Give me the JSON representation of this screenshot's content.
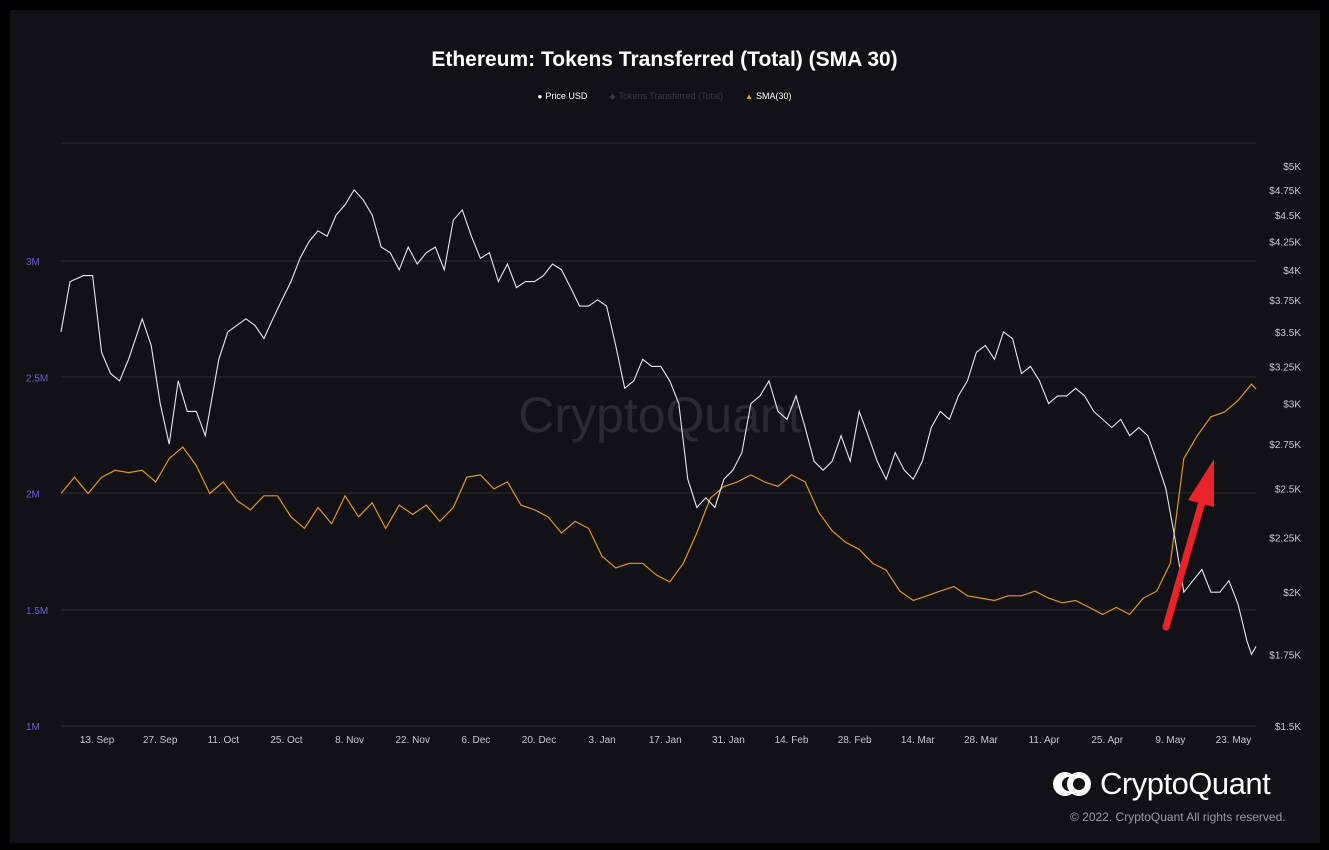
{
  "title": "Ethereum: Tokens Transferred (Total) (SMA 30)",
  "watermark": "CryptoQuant",
  "brand": {
    "logo_text": "CryptoQuant",
    "copyright": "© 2022. CryptoQuant All rights reserved."
  },
  "legend": [
    {
      "label": "Price USD",
      "marker": "circle",
      "color": "#ffffff"
    },
    {
      "label": "Tokens Transferred (Total)",
      "marker": "diamond",
      "color": "#3a3a40"
    },
    {
      "label": "SMA(30)",
      "marker": "triangle",
      "color": "#f0a21a"
    }
  ],
  "colors": {
    "background": "#121216",
    "price": "#e8e8ec",
    "sma": "#e0971a",
    "left_axis": "#6a5fd8",
    "right_axis": "#c8c8cc",
    "arrow": "#e8232a",
    "grid": "#2c2c32"
  },
  "chart_data": {
    "type": "line",
    "title": "Ethereum: Tokens Transferred (Total) (SMA 30)",
    "x_tick_labels": [
      "13. Sep",
      "27. Sep",
      "11. Oct",
      "25. Oct",
      "8. Nov",
      "22. Nov",
      "6. Dec",
      "20. Dec",
      "3. Jan",
      "17. Jan",
      "31. Jan",
      "14. Feb",
      "28. Feb",
      "14. Mar",
      "28. Mar",
      "11. Apr",
      "25. Apr",
      "9. May",
      "23. May"
    ],
    "x_range": [
      "2021-09-05",
      "2022-05-28"
    ],
    "left_axis": {
      "ticks": [
        "1M",
        "1.5M",
        "2M",
        "2.5M",
        "3M"
      ],
      "range": [
        1000000,
        3500000
      ]
    },
    "right_axis": {
      "scale": "log",
      "ticks": [
        "$1.5K",
        "$1.75K",
        "$2K",
        "$2.25K",
        "$2.5K",
        "$2.75K",
        "$3K",
        "$3.25K",
        "$3.5K",
        "$3.75K",
        "$4K",
        "$4.25K",
        "$4.5K",
        "$4.75K",
        "$5K"
      ],
      "range": [
        1500,
        5000
      ]
    },
    "grid": true,
    "legend_position": "top-center",
    "series": [
      {
        "name": "Price USD",
        "axis": "right",
        "points": [
          [
            "2021-09-05",
            3500
          ],
          [
            "2021-09-07",
            3900
          ],
          [
            "2021-09-10",
            3950
          ],
          [
            "2021-09-12",
            3950
          ],
          [
            "2021-09-14",
            3350
          ],
          [
            "2021-09-16",
            3200
          ],
          [
            "2021-09-18",
            3150
          ],
          [
            "2021-09-20",
            3300
          ],
          [
            "2021-09-23",
            3600
          ],
          [
            "2021-09-25",
            3400
          ],
          [
            "2021-09-27",
            3000
          ],
          [
            "2021-09-29",
            2750
          ],
          [
            "2021-10-01",
            3150
          ],
          [
            "2021-10-03",
            2950
          ],
          [
            "2021-10-05",
            2950
          ],
          [
            "2021-10-07",
            2800
          ],
          [
            "2021-10-10",
            3300
          ],
          [
            "2021-10-12",
            3500
          ],
          [
            "2021-10-14",
            3550
          ],
          [
            "2021-10-16",
            3600
          ],
          [
            "2021-10-18",
            3550
          ],
          [
            "2021-10-20",
            3450
          ],
          [
            "2021-10-22",
            3600
          ],
          [
            "2021-10-24",
            3750
          ],
          [
            "2021-10-26",
            3900
          ],
          [
            "2021-10-28",
            4100
          ],
          [
            "2021-10-30",
            4250
          ],
          [
            "2021-11-01",
            4350
          ],
          [
            "2021-11-03",
            4300
          ],
          [
            "2021-11-05",
            4500
          ],
          [
            "2021-11-07",
            4600
          ],
          [
            "2021-11-09",
            4750
          ],
          [
            "2021-11-11",
            4650
          ],
          [
            "2021-11-13",
            4500
          ],
          [
            "2021-11-15",
            4200
          ],
          [
            "2021-11-17",
            4150
          ],
          [
            "2021-11-19",
            4000
          ],
          [
            "2021-11-21",
            4200
          ],
          [
            "2021-11-23",
            4050
          ],
          [
            "2021-11-25",
            4150
          ],
          [
            "2021-11-27",
            4200
          ],
          [
            "2021-11-29",
            4000
          ],
          [
            "2021-12-01",
            4450
          ],
          [
            "2021-12-03",
            4550
          ],
          [
            "2021-12-05",
            4300
          ],
          [
            "2021-12-07",
            4100
          ],
          [
            "2021-12-09",
            4150
          ],
          [
            "2021-12-11",
            3900
          ],
          [
            "2021-12-13",
            4050
          ],
          [
            "2021-12-15",
            3850
          ],
          [
            "2021-12-17",
            3900
          ],
          [
            "2021-12-19",
            3900
          ],
          [
            "2021-12-21",
            3950
          ],
          [
            "2021-12-23",
            4050
          ],
          [
            "2021-12-25",
            4000
          ],
          [
            "2021-12-27",
            3850
          ],
          [
            "2021-12-29",
            3700
          ],
          [
            "2021-12-31",
            3700
          ],
          [
            "2022-01-02",
            3750
          ],
          [
            "2022-01-04",
            3700
          ],
          [
            "2022-01-06",
            3400
          ],
          [
            "2022-01-08",
            3100
          ],
          [
            "2022-01-10",
            3150
          ],
          [
            "2022-01-12",
            3300
          ],
          [
            "2022-01-14",
            3250
          ],
          [
            "2022-01-16",
            3250
          ],
          [
            "2022-01-18",
            3150
          ],
          [
            "2022-01-20",
            3000
          ],
          [
            "2022-01-22",
            2550
          ],
          [
            "2022-01-24",
            2400
          ],
          [
            "2022-01-26",
            2450
          ],
          [
            "2022-01-28",
            2400
          ],
          [
            "2022-01-30",
            2550
          ],
          [
            "2022-02-01",
            2600
          ],
          [
            "2022-02-03",
            2700
          ],
          [
            "2022-02-05",
            3000
          ],
          [
            "2022-02-07",
            3050
          ],
          [
            "2022-02-09",
            3150
          ],
          [
            "2022-02-11",
            2950
          ],
          [
            "2022-02-13",
            2900
          ],
          [
            "2022-02-15",
            3050
          ],
          [
            "2022-02-17",
            2850
          ],
          [
            "2022-02-19",
            2650
          ],
          [
            "2022-02-21",
            2600
          ],
          [
            "2022-02-23",
            2650
          ],
          [
            "2022-02-25",
            2800
          ],
          [
            "2022-02-27",
            2650
          ],
          [
            "2022-03-01",
            2950
          ],
          [
            "2022-03-03",
            2800
          ],
          [
            "2022-03-05",
            2650
          ],
          [
            "2022-03-07",
            2550
          ],
          [
            "2022-03-09",
            2700
          ],
          [
            "2022-03-11",
            2600
          ],
          [
            "2022-03-13",
            2550
          ],
          [
            "2022-03-15",
            2650
          ],
          [
            "2022-03-17",
            2850
          ],
          [
            "2022-03-19",
            2950
          ],
          [
            "2022-03-21",
            2900
          ],
          [
            "2022-03-23",
            3050
          ],
          [
            "2022-03-25",
            3150
          ],
          [
            "2022-03-27",
            3350
          ],
          [
            "2022-03-29",
            3400
          ],
          [
            "2022-03-31",
            3300
          ],
          [
            "2022-04-02",
            3500
          ],
          [
            "2022-04-04",
            3450
          ],
          [
            "2022-04-06",
            3200
          ],
          [
            "2022-04-08",
            3250
          ],
          [
            "2022-04-10",
            3150
          ],
          [
            "2022-04-12",
            3000
          ],
          [
            "2022-04-14",
            3050
          ],
          [
            "2022-04-16",
            3050
          ],
          [
            "2022-04-18",
            3100
          ],
          [
            "2022-04-20",
            3050
          ],
          [
            "2022-04-22",
            2950
          ],
          [
            "2022-04-24",
            2900
          ],
          [
            "2022-04-26",
            2850
          ],
          [
            "2022-04-28",
            2900
          ],
          [
            "2022-04-30",
            2800
          ],
          [
            "2022-05-02",
            2850
          ],
          [
            "2022-05-04",
            2800
          ],
          [
            "2022-05-06",
            2650
          ],
          [
            "2022-05-08",
            2500
          ],
          [
            "2022-05-10",
            2250
          ],
          [
            "2022-05-12",
            2000
          ],
          [
            "2022-05-14",
            2050
          ],
          [
            "2022-05-16",
            2100
          ],
          [
            "2022-05-18",
            2000
          ],
          [
            "2022-05-20",
            2000
          ],
          [
            "2022-05-22",
            2050
          ],
          [
            "2022-05-24",
            1950
          ],
          [
            "2022-05-26",
            1800
          ],
          [
            "2022-05-27",
            1750
          ],
          [
            "2022-05-28",
            1780
          ]
        ]
      },
      {
        "name": "SMA(30)",
        "axis": "left",
        "points": [
          [
            "2021-09-05",
            2000000
          ],
          [
            "2021-09-08",
            2070000
          ],
          [
            "2021-09-11",
            2000000
          ],
          [
            "2021-09-14",
            2070000
          ],
          [
            "2021-09-17",
            2100000
          ],
          [
            "2021-09-20",
            2090000
          ],
          [
            "2021-09-23",
            2100000
          ],
          [
            "2021-09-26",
            2050000
          ],
          [
            "2021-09-29",
            2150000
          ],
          [
            "2021-10-02",
            2200000
          ],
          [
            "2021-10-05",
            2120000
          ],
          [
            "2021-10-08",
            2000000
          ],
          [
            "2021-10-11",
            2050000
          ],
          [
            "2021-10-14",
            1970000
          ],
          [
            "2021-10-17",
            1930000
          ],
          [
            "2021-10-20",
            1990000
          ],
          [
            "2021-10-23",
            1990000
          ],
          [
            "2021-10-26",
            1900000
          ],
          [
            "2021-10-29",
            1850000
          ],
          [
            "2021-11-01",
            1940000
          ],
          [
            "2021-11-04",
            1870000
          ],
          [
            "2021-11-07",
            1990000
          ],
          [
            "2021-11-10",
            1900000
          ],
          [
            "2021-11-13",
            1960000
          ],
          [
            "2021-11-16",
            1850000
          ],
          [
            "2021-11-19",
            1950000
          ],
          [
            "2021-11-22",
            1910000
          ],
          [
            "2021-11-25",
            1950000
          ],
          [
            "2021-11-28",
            1880000
          ],
          [
            "2021-12-01",
            1940000
          ],
          [
            "2021-12-04",
            2070000
          ],
          [
            "2021-12-07",
            2080000
          ],
          [
            "2021-12-10",
            2020000
          ],
          [
            "2021-12-13",
            2050000
          ],
          [
            "2021-12-16",
            1950000
          ],
          [
            "2021-12-19",
            1930000
          ],
          [
            "2021-12-22",
            1900000
          ],
          [
            "2021-12-25",
            1830000
          ],
          [
            "2021-12-28",
            1880000
          ],
          [
            "2021-12-31",
            1850000
          ],
          [
            "2022-01-03",
            1730000
          ],
          [
            "2022-01-06",
            1680000
          ],
          [
            "2022-01-09",
            1700000
          ],
          [
            "2022-01-12",
            1700000
          ],
          [
            "2022-01-15",
            1650000
          ],
          [
            "2022-01-18",
            1620000
          ],
          [
            "2022-01-21",
            1700000
          ],
          [
            "2022-01-24",
            1830000
          ],
          [
            "2022-01-27",
            1980000
          ],
          [
            "2022-01-30",
            2030000
          ],
          [
            "2022-02-02",
            2050000
          ],
          [
            "2022-02-05",
            2080000
          ],
          [
            "2022-02-08",
            2050000
          ],
          [
            "2022-02-11",
            2030000
          ],
          [
            "2022-02-14",
            2080000
          ],
          [
            "2022-02-17",
            2050000
          ],
          [
            "2022-02-20",
            1920000
          ],
          [
            "2022-02-23",
            1840000
          ],
          [
            "2022-02-26",
            1790000
          ],
          [
            "2022-03-01",
            1760000
          ],
          [
            "2022-03-04",
            1700000
          ],
          [
            "2022-03-07",
            1670000
          ],
          [
            "2022-03-10",
            1580000
          ],
          [
            "2022-03-13",
            1540000
          ],
          [
            "2022-03-16",
            1560000
          ],
          [
            "2022-03-19",
            1580000
          ],
          [
            "2022-03-22",
            1600000
          ],
          [
            "2022-03-25",
            1560000
          ],
          [
            "2022-03-28",
            1550000
          ],
          [
            "2022-03-31",
            1540000
          ],
          [
            "2022-04-03",
            1560000
          ],
          [
            "2022-04-06",
            1560000
          ],
          [
            "2022-04-09",
            1580000
          ],
          [
            "2022-04-12",
            1550000
          ],
          [
            "2022-04-15",
            1530000
          ],
          [
            "2022-04-18",
            1540000
          ],
          [
            "2022-04-21",
            1510000
          ],
          [
            "2022-04-24",
            1480000
          ],
          [
            "2022-04-27",
            1510000
          ],
          [
            "2022-04-30",
            1480000
          ],
          [
            "2022-05-03",
            1550000
          ],
          [
            "2022-05-06",
            1580000
          ],
          [
            "2022-05-09",
            1700000
          ],
          [
            "2022-05-12",
            2150000
          ],
          [
            "2022-05-15",
            2250000
          ],
          [
            "2022-05-18",
            2330000
          ],
          [
            "2022-05-21",
            2350000
          ],
          [
            "2022-05-24",
            2400000
          ],
          [
            "2022-05-27",
            2470000
          ],
          [
            "2022-05-28",
            2450000
          ]
        ]
      }
    ]
  }
}
